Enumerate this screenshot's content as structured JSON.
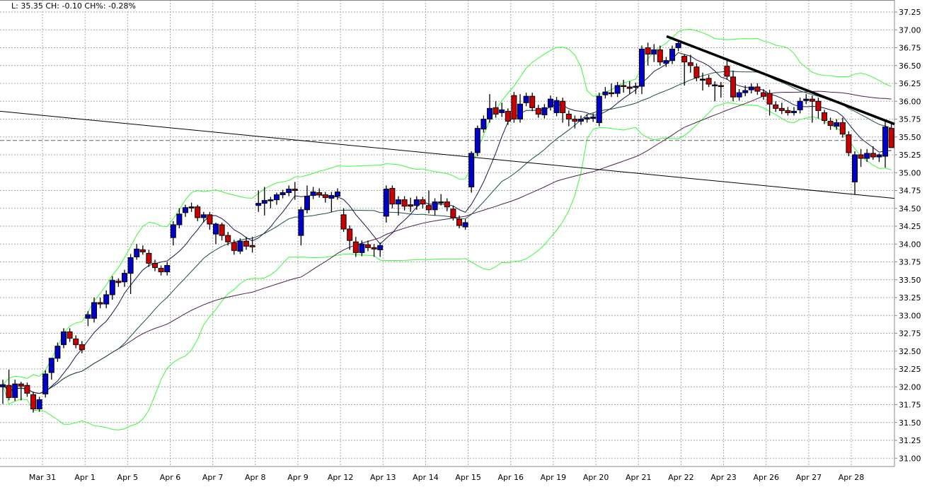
{
  "info_label": "L: 35.35 CH: -0.10 CH%: -0.28%",
  "chart_data": {
    "type": "candlestick",
    "title": "",
    "ylim": [
      30.9,
      37.35
    ],
    "y_ticks": [
      "37.25",
      "37.00",
      "36.75",
      "36.50",
      "36.25",
      "36.00",
      "35.75",
      "35.50",
      "35.25",
      "35.00",
      "34.75",
      "34.50",
      "34.25",
      "34.00",
      "33.75",
      "33.50",
      "33.25",
      "33.00",
      "32.75",
      "32.50",
      "32.25",
      "32.00",
      "31.75",
      "31.50",
      "31.25",
      "31.00"
    ],
    "x_ticks": [
      "Mar 31",
      "Apr 1",
      "Apr 5",
      "Apr 6",
      "Apr 7",
      "Apr 8",
      "Apr 9",
      "Apr 12",
      "Apr 13",
      "Apr 14",
      "Apr 15",
      "Apr 16",
      "Apr 19",
      "Apr 20",
      "Apr 21",
      "Apr 22",
      "Apr 23",
      "Apr 26",
      "Apr 27",
      "Apr 28"
    ],
    "grid": true,
    "colors": {
      "up": "#0000cc",
      "down": "#cc0000",
      "doji": "#000000",
      "bollinger": "#33ff33",
      "ma_fast": "#1a1a4d",
      "ma_mid": "#1f4d4d",
      "ma_slow": "#4d1f4d",
      "grid": "#aaaaaa"
    },
    "candles_ohlc": [
      [
        32.0,
        32.1,
        31.76,
        32.03
      ],
      [
        32.02,
        32.24,
        31.81,
        31.85
      ],
      [
        31.85,
        32.1,
        31.8,
        32.04
      ],
      [
        32.04,
        32.07,
        31.81,
        32.01
      ],
      [
        32.02,
        32.06,
        31.86,
        31.91
      ],
      [
        31.89,
        31.93,
        31.64,
        31.69
      ],
      [
        31.69,
        31.86,
        31.65,
        31.82
      ],
      [
        31.9,
        32.23,
        31.85,
        32.18
      ],
      [
        32.2,
        32.3,
        32.1,
        32.4
      ],
      [
        32.4,
        32.62,
        32.35,
        32.57
      ],
      [
        32.59,
        32.82,
        32.54,
        32.77
      ],
      [
        32.77,
        32.82,
        32.63,
        32.68
      ],
      [
        32.67,
        32.72,
        32.54,
        32.59
      ],
      [
        32.59,
        32.64,
        32.47,
        32.52
      ],
      [
        32.96,
        33.06,
        32.85,
        33.01
      ],
      [
        32.96,
        33.25,
        32.9,
        33.18
      ],
      [
        33.18,
        33.25,
        33.1,
        33.16
      ],
      [
        33.16,
        33.35,
        33.1,
        33.29
      ],
      [
        33.29,
        33.55,
        33.22,
        33.49
      ],
      [
        33.48,
        33.52,
        33.4,
        33.46
      ],
      [
        33.47,
        33.64,
        33.4,
        33.59
      ],
      [
        33.59,
        33.86,
        33.3,
        33.81
      ],
      [
        33.82,
        34.0,
        33.78,
        33.93
      ],
      [
        33.92,
        33.98,
        33.85,
        33.89
      ],
      [
        33.87,
        33.92,
        33.68,
        33.73
      ],
      [
        33.73,
        33.78,
        33.62,
        33.67
      ],
      [
        33.66,
        33.7,
        33.56,
        33.61
      ],
      [
        33.61,
        33.75,
        33.56,
        33.7
      ],
      [
        34.09,
        34.32,
        33.98,
        34.27
      ],
      [
        34.27,
        34.5,
        34.22,
        34.42
      ],
      [
        34.44,
        34.55,
        34.38,
        34.51
      ],
      [
        34.52,
        34.58,
        34.45,
        34.52
      ],
      [
        34.52,
        34.55,
        34.32,
        34.37
      ],
      [
        34.37,
        34.45,
        34.3,
        34.41
      ],
      [
        34.41,
        34.45,
        34.2,
        34.28
      ],
      [
        34.14,
        34.3,
        34.0,
        34.28
      ],
      [
        34.27,
        34.3,
        34.05,
        34.12
      ],
      [
        34.12,
        34.17,
        33.98,
        34.03
      ],
      [
        34.02,
        34.06,
        33.85,
        33.91
      ],
      [
        33.9,
        34.08,
        33.86,
        34.04
      ],
      [
        34.04,
        34.1,
        33.92,
        33.97
      ],
      [
        33.98,
        34.1,
        33.88,
        33.96
      ],
      [
        34.54,
        34.75,
        34.45,
        34.57
      ],
      [
        34.57,
        34.8,
        34.4,
        34.61
      ],
      [
        34.61,
        34.66,
        34.5,
        34.62
      ],
      [
        34.62,
        34.72,
        34.55,
        34.69
      ],
      [
        34.69,
        34.76,
        34.64,
        34.72
      ],
      [
        34.72,
        34.82,
        34.67,
        34.77
      ],
      [
        34.77,
        34.87,
        34.62,
        34.75
      ],
      [
        34.12,
        34.52,
        33.98,
        34.48
      ],
      [
        34.48,
        34.82,
        34.43,
        34.67
      ],
      [
        34.68,
        34.8,
        34.63,
        34.73
      ],
      [
        34.72,
        34.78,
        34.65,
        34.69
      ],
      [
        34.69,
        34.73,
        34.58,
        34.65
      ],
      [
        34.64,
        34.73,
        34.45,
        34.68
      ],
      [
        34.67,
        34.78,
        34.62,
        34.73
      ],
      [
        34.41,
        34.5,
        34.17,
        34.21
      ],
      [
        34.21,
        34.26,
        33.92,
        34.05
      ],
      [
        34.03,
        34.1,
        33.82,
        33.88
      ],
      [
        33.88,
        34.05,
        33.83,
        34.0
      ],
      [
        33.99,
        34.05,
        33.9,
        33.95
      ],
      [
        33.95,
        34.0,
        33.82,
        33.93
      ],
      [
        33.92,
        34.02,
        33.82,
        33.98
      ],
      [
        34.39,
        34.82,
        34.3,
        34.77
      ],
      [
        34.78,
        34.82,
        34.5,
        34.56
      ],
      [
        34.56,
        34.67,
        34.4,
        34.62
      ],
      [
        34.62,
        34.67,
        34.47,
        34.53
      ],
      [
        34.55,
        34.65,
        34.45,
        34.53
      ],
      [
        34.54,
        34.67,
        34.48,
        34.62
      ],
      [
        34.62,
        34.66,
        34.5,
        34.56
      ],
      [
        34.54,
        34.75,
        34.43,
        34.48
      ],
      [
        34.48,
        34.64,
        34.4,
        34.59
      ],
      [
        34.59,
        34.7,
        34.54,
        34.59
      ],
      [
        34.59,
        34.64,
        34.46,
        34.52
      ],
      [
        34.49,
        34.54,
        34.33,
        34.37
      ],
      [
        34.35,
        34.4,
        34.22,
        34.26
      ],
      [
        34.24,
        34.35,
        34.2,
        34.3
      ],
      [
        34.8,
        35.3,
        34.72,
        35.27
      ],
      [
        35.28,
        35.66,
        35.23,
        35.62
      ],
      [
        35.61,
        35.8,
        35.56,
        35.75
      ],
      [
        35.75,
        36.1,
        35.7,
        35.9
      ],
      [
        35.91,
        36.0,
        35.77,
        35.82
      ],
      [
        35.84,
        35.98,
        35.78,
        35.88
      ],
      [
        35.86,
        35.9,
        35.67,
        35.72
      ],
      [
        36.08,
        36.13,
        35.7,
        35.75
      ],
      [
        35.75,
        36.1,
        35.7,
        35.96
      ],
      [
        35.98,
        36.12,
        35.93,
        36.07
      ],
      [
        36.07,
        36.12,
        35.86,
        35.91
      ],
      [
        35.9,
        35.95,
        35.77,
        35.82
      ],
      [
        35.81,
        35.96,
        35.76,
        35.91
      ],
      [
        35.92,
        36.08,
        35.87,
        36.03
      ],
      [
        35.84,
        36.06,
        35.79,
        36.01
      ],
      [
        36.0,
        36.05,
        35.7,
        35.84
      ],
      [
        35.82,
        35.87,
        35.65,
        35.75
      ],
      [
        35.75,
        35.8,
        35.62,
        35.72
      ],
      [
        35.72,
        35.8,
        35.67,
        35.75
      ],
      [
        35.75,
        35.82,
        35.7,
        35.77
      ],
      [
        35.76,
        35.83,
        35.71,
        35.78
      ],
      [
        35.7,
        36.12,
        35.65,
        36.07
      ],
      [
        36.09,
        36.2,
        36.04,
        36.13
      ],
      [
        36.12,
        36.25,
        36.06,
        36.11
      ],
      [
        36.11,
        36.27,
        36.06,
        36.22
      ],
      [
        36.22,
        36.3,
        36.12,
        36.21
      ],
      [
        36.2,
        36.28,
        36.1,
        36.18
      ],
      [
        36.2,
        36.26,
        36.1,
        36.21
      ],
      [
        36.21,
        36.78,
        36.1,
        36.73
      ],
      [
        36.75,
        36.82,
        36.5,
        36.66
      ],
      [
        36.66,
        36.8,
        36.55,
        36.72
      ],
      [
        36.72,
        36.78,
        36.5,
        36.55
      ],
      [
        36.53,
        36.62,
        36.48,
        36.57
      ],
      [
        36.57,
        36.78,
        36.52,
        36.73
      ],
      [
        36.75,
        36.85,
        36.7,
        36.81
      ],
      [
        36.63,
        36.66,
        36.22,
        36.55
      ],
      [
        36.54,
        36.65,
        36.4,
        36.5
      ],
      [
        36.48,
        36.53,
        36.28,
        36.33
      ],
      [
        36.31,
        36.4,
        36.15,
        36.31
      ],
      [
        36.32,
        36.37,
        36.2,
        36.24
      ],
      [
        36.22,
        36.28,
        36.0,
        36.23
      ],
      [
        36.22,
        36.27,
        36.05,
        36.21
      ],
      [
        36.49,
        36.6,
        36.3,
        36.35
      ],
      [
        36.34,
        36.43,
        36.0,
        36.06
      ],
      [
        36.06,
        36.17,
        36.01,
        36.12
      ],
      [
        36.12,
        36.22,
        36.07,
        36.15
      ],
      [
        36.16,
        36.25,
        36.11,
        36.2
      ],
      [
        36.2,
        36.25,
        36.09,
        36.14
      ],
      [
        36.12,
        36.17,
        36.02,
        36.07
      ],
      [
        36.11,
        36.16,
        35.8,
        35.96
      ],
      [
        35.95,
        36.0,
        35.85,
        35.9
      ],
      [
        35.9,
        35.98,
        35.82,
        35.87
      ],
      [
        35.87,
        35.92,
        35.8,
        35.84
      ],
      [
        35.84,
        35.92,
        35.8,
        35.86
      ],
      [
        35.88,
        36.05,
        35.83,
        36.0
      ],
      [
        36.01,
        36.1,
        35.96,
        36.03
      ],
      [
        36.03,
        36.08,
        35.7,
        36.0
      ],
      [
        36.0,
        36.05,
        35.76,
        35.87
      ],
      [
        35.84,
        35.88,
        35.68,
        35.73
      ],
      [
        35.72,
        35.77,
        35.6,
        35.66
      ],
      [
        35.65,
        35.75,
        35.6,
        35.7
      ],
      [
        35.7,
        35.77,
        35.49,
        35.54
      ],
      [
        35.53,
        35.58,
        35.23,
        35.28
      ],
      [
        34.87,
        35.3,
        34.69,
        35.25
      ],
      [
        35.25,
        35.33,
        35.08,
        35.2
      ],
      [
        35.2,
        35.33,
        35.15,
        35.27
      ],
      [
        35.27,
        35.37,
        35.18,
        35.22
      ],
      [
        35.22,
        35.27,
        35.15,
        35.25
      ],
      [
        35.23,
        35.72,
        35.07,
        35.64
      ],
      [
        35.62,
        35.68,
        35.4,
        35.35
      ]
    ],
    "trendlines": [
      {
        "from": [
          "start",
          35.86
        ],
        "to": [
          "end",
          34.64
        ],
        "style": "thin"
      },
      {
        "from": [
          "Apr 22",
          36.91
        ],
        "to": [
          "end",
          35.68
        ],
        "style": "thick"
      }
    ],
    "reference_line": 35.45
  }
}
